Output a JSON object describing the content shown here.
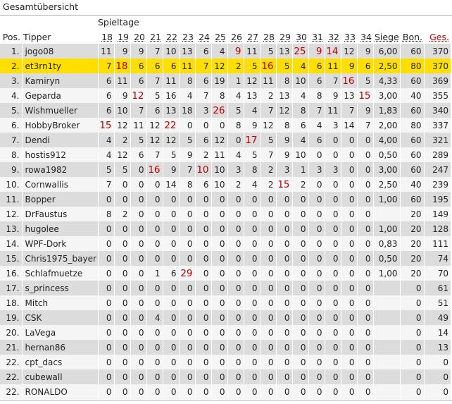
{
  "title": "Gesamtübersicht",
  "spieltage_label": "Spieltage",
  "headers": {
    "pos": "Pos.",
    "tipper": "Tipper",
    "siege": "Siege",
    "bonus": "Bon.",
    "gesamt": "Ges."
  },
  "days": [
    "18",
    "19",
    "20",
    "21",
    "22",
    "23",
    "24",
    "25",
    "26",
    "27",
    "28",
    "29",
    "30",
    "31",
    "32",
    "33",
    "34"
  ],
  "colors": {
    "highlight_row": "#ffde00",
    "max_value": "#c00000",
    "row_odd": "#dcdcdc",
    "row_even": "#f5f5f5"
  },
  "rows": [
    {
      "pos": "1.",
      "name": "jogo08",
      "pts": [
        "11",
        "9",
        "9",
        "7",
        "10",
        "13",
        "6",
        "4",
        "9",
        "11",
        "5",
        "13",
        "25",
        "9",
        "14",
        "12",
        "9"
      ],
      "red": [
        8,
        12,
        13,
        14
      ],
      "siege": "6,00",
      "bonus": "60",
      "total": "370"
    },
    {
      "pos": "2.",
      "name": "et3rn1ty",
      "pts": [
        "7",
        "18",
        "6",
        "6",
        "6",
        "11",
        "7",
        "12",
        "2",
        "5",
        "16",
        "5",
        "4",
        "6",
        "11",
        "9",
        "6"
      ],
      "red": [
        1,
        10
      ],
      "siege": "2,50",
      "bonus": "80",
      "total": "370",
      "current_user": true
    },
    {
      "pos": "3.",
      "name": "Kamiryn",
      "pts": [
        "6",
        "11",
        "6",
        "7",
        "11",
        "8",
        "6",
        "19",
        "1",
        "12",
        "11",
        "8",
        "10",
        "6",
        "7",
        "16",
        "5"
      ],
      "red": [
        15
      ],
      "siege": "4,33",
      "bonus": "60",
      "total": "369"
    },
    {
      "pos": "4.",
      "name": "Geparda",
      "pts": [
        "6",
        "9",
        "12",
        "5",
        "16",
        "4",
        "7",
        "8",
        "4",
        "13",
        "2",
        "13",
        "4",
        "8",
        "9",
        "13",
        "15"
      ],
      "red": [
        2,
        16
      ],
      "siege": "3,00",
      "bonus": "40",
      "total": "355"
    },
    {
      "pos": "5.",
      "name": "Wishmueller",
      "pts": [
        "6",
        "10",
        "7",
        "6",
        "13",
        "18",
        "3",
        "26",
        "5",
        "4",
        "7",
        "12",
        "8",
        "7",
        "11",
        "7",
        "9"
      ],
      "red": [
        7
      ],
      "siege": "1,83",
      "bonus": "60",
      "total": "340"
    },
    {
      "pos": "6.",
      "name": "HobbyBroker",
      "pts": [
        "15",
        "12",
        "11",
        "12",
        "22",
        "0",
        "0",
        "0",
        "8",
        "9",
        "12",
        "8",
        "6",
        "4",
        "3",
        "14",
        "7"
      ],
      "red": [
        0,
        4
      ],
      "siege": "2,00",
      "bonus": "80",
      "total": "337"
    },
    {
      "pos": "7.",
      "name": "Dendi",
      "pts": [
        "4",
        "2",
        "5",
        "12",
        "12",
        "5",
        "6",
        "12",
        "0",
        "17",
        "5",
        "9",
        "4",
        "6",
        "0",
        "0",
        "0"
      ],
      "red": [
        9
      ],
      "siege": "4,00",
      "bonus": "60",
      "total": "321"
    },
    {
      "pos": "8.",
      "name": "hostis912",
      "pts": [
        "4",
        "12",
        "6",
        "7",
        "5",
        "9",
        "2",
        "11",
        "4",
        "5",
        "7",
        "9",
        "10",
        "0",
        "0",
        "0",
        "0"
      ],
      "red": [],
      "siege": "0,50",
      "bonus": "60",
      "total": "289"
    },
    {
      "pos": "9.",
      "name": "rowa1982",
      "pts": [
        "5",
        "5",
        "0",
        "16",
        "9",
        "7",
        "10",
        "10",
        "3",
        "8",
        "2",
        "3",
        "1",
        "3",
        "3",
        "0",
        "0"
      ],
      "red": [
        3,
        6
      ],
      "siege": "3,00",
      "bonus": "60",
      "total": "247"
    },
    {
      "pos": "10.",
      "name": "Cornwallis",
      "pts": [
        "7",
        "0",
        "0",
        "0",
        "14",
        "8",
        "6",
        "10",
        "2",
        "4",
        "2",
        "15",
        "2",
        "0",
        "0",
        "0",
        "0"
      ],
      "red": [
        11
      ],
      "siege": "2,50",
      "bonus": "40",
      "total": "239"
    },
    {
      "pos": "11.",
      "name": "Bopper",
      "pts": [
        "0",
        "0",
        "0",
        "0",
        "0",
        "0",
        "0",
        "0",
        "0",
        "0",
        "0",
        "0",
        "0",
        "0",
        "0",
        "0",
        "0"
      ],
      "red": [],
      "siege": "1,00",
      "bonus": "60",
      "total": "195"
    },
    {
      "pos": "12.",
      "name": "DrFaustus",
      "pts": [
        "8",
        "2",
        "0",
        "0",
        "0",
        "0",
        "0",
        "0",
        "0",
        "0",
        "0",
        "0",
        "0",
        "0",
        "0",
        "0",
        "0"
      ],
      "red": [],
      "siege": "",
      "bonus": "20",
      "total": "149"
    },
    {
      "pos": "13.",
      "name": "hugolee",
      "pts": [
        "0",
        "0",
        "0",
        "0",
        "0",
        "0",
        "0",
        "0",
        "0",
        "0",
        "0",
        "0",
        "0",
        "0",
        "0",
        "0",
        "0"
      ],
      "red": [],
      "siege": "1,00",
      "bonus": "20",
      "total": "128"
    },
    {
      "pos": "14.",
      "name": "WPF-Dork",
      "pts": [
        "0",
        "0",
        "0",
        "0",
        "0",
        "0",
        "0",
        "0",
        "0",
        "0",
        "0",
        "0",
        "0",
        "0",
        "0",
        "0",
        "0"
      ],
      "red": [],
      "siege": "0,83",
      "bonus": "20",
      "total": "111"
    },
    {
      "pos": "15.",
      "name": "Chris1975_bayer",
      "pts": [
        "0",
        "0",
        "0",
        "0",
        "0",
        "0",
        "0",
        "0",
        "0",
        "0",
        "0",
        "0",
        "0",
        "0",
        "0",
        "0",
        "0"
      ],
      "red": [],
      "siege": "0,50",
      "bonus": "20",
      "total": "74"
    },
    {
      "pos": "16.",
      "name": "Schlafmuetze",
      "pts": [
        "0",
        "0",
        "0",
        "1",
        "6",
        "29",
        "0",
        "0",
        "0",
        "0",
        "0",
        "0",
        "0",
        "0",
        "0",
        "0",
        "0"
      ],
      "red": [
        5
      ],
      "siege": "1,00",
      "bonus": "20",
      "total": "70"
    },
    {
      "pos": "17.",
      "name": "s_princess",
      "pts": [
        "0",
        "0",
        "0",
        "0",
        "0",
        "0",
        "0",
        "0",
        "0",
        "0",
        "0",
        "0",
        "0",
        "0",
        "0",
        "0",
        "0"
      ],
      "red": [],
      "siege": "",
      "bonus": "0",
      "total": "61"
    },
    {
      "pos": "18.",
      "name": "Mitch",
      "pts": [
        "0",
        "0",
        "0",
        "0",
        "0",
        "0",
        "0",
        "0",
        "0",
        "0",
        "0",
        "0",
        "0",
        "0",
        "0",
        "0",
        "0"
      ],
      "red": [],
      "siege": "",
      "bonus": "0",
      "total": "51"
    },
    {
      "pos": "19.",
      "name": "CSK",
      "pts": [
        "0",
        "0",
        "0",
        "4",
        "0",
        "0",
        "0",
        "0",
        "0",
        "0",
        "0",
        "0",
        "0",
        "0",
        "0",
        "0",
        "0"
      ],
      "red": [],
      "siege": "",
      "bonus": "0",
      "total": "49"
    },
    {
      "pos": "20.",
      "name": "LaVega",
      "pts": [
        "0",
        "0",
        "0",
        "0",
        "0",
        "0",
        "0",
        "0",
        "0",
        "0",
        "0",
        "0",
        "0",
        "0",
        "0",
        "0",
        "0"
      ],
      "red": [],
      "siege": "",
      "bonus": "0",
      "total": "14"
    },
    {
      "pos": "21.",
      "name": "hernan86",
      "pts": [
        "0",
        "0",
        "0",
        "0",
        "0",
        "0",
        "0",
        "0",
        "0",
        "0",
        "0",
        "0",
        "0",
        "0",
        "0",
        "0",
        "0"
      ],
      "red": [],
      "siege": "",
      "bonus": "0",
      "total": "13"
    },
    {
      "pos": "22.",
      "name": "cpt_dacs",
      "pts": [
        "0",
        "0",
        "0",
        "0",
        "0",
        "0",
        "0",
        "0",
        "0",
        "0",
        "0",
        "0",
        "0",
        "0",
        "0",
        "0",
        "0"
      ],
      "red": [],
      "siege": "",
      "bonus": "0",
      "total": "0"
    },
    {
      "pos": "22.",
      "name": "cubewall",
      "pts": [
        "0",
        "0",
        "0",
        "0",
        "0",
        "0",
        "0",
        "0",
        "0",
        "0",
        "0",
        "0",
        "0",
        "0",
        "0",
        "0",
        "0"
      ],
      "red": [],
      "siege": "",
      "bonus": "0",
      "total": "0"
    },
    {
      "pos": "22.",
      "name": "RONALDO",
      "pts": [
        "0",
        "0",
        "0",
        "0",
        "0",
        "0",
        "0",
        "0",
        "0",
        "0",
        "0",
        "0",
        "0",
        "0",
        "0",
        "0",
        "0"
      ],
      "red": [],
      "siege": "",
      "bonus": "0",
      "total": "0"
    }
  ]
}
